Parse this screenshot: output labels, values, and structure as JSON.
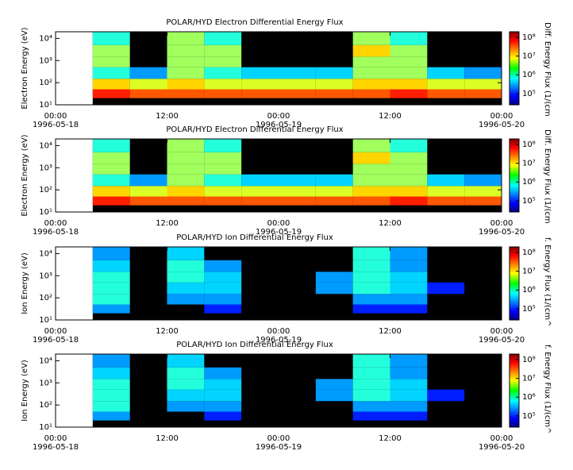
{
  "chart_data": [
    {
      "type": "heatmap",
      "title": "POLAR/HYD  Electron Differential Energy Flux",
      "ylabel": "Electron Energy (eV)",
      "zlabel": "Diff. Energy Flux (1/(cm",
      "xlim": [
        "1996-05-18 00:00",
        "1996-05-20 00:00"
      ],
      "xticks": [
        {
          "value": "1996-05-18 00:00",
          "label": "00:00",
          "date": "1996-05-18"
        },
        {
          "value": "1996-05-18 12:00",
          "label": "12:00"
        },
        {
          "value": "1996-05-19 00:00",
          "label": "00:00",
          "date": "1996-05-19"
        },
        {
          "value": "1996-05-19 12:00",
          "label": "12:00"
        },
        {
          "value": "1996-05-20 00:00",
          "label": "00:00",
          "date": "1996-05-20"
        }
      ],
      "x_edges": [
        "1996-05-18 04:00",
        "1996-05-18 08:00",
        "1996-05-18 12:00",
        "1996-05-18 16:00",
        "1996-05-18 20:00",
        "1996-05-19 00:00",
        "1996-05-19 04:00",
        "1996-05-19 08:00",
        "1996-05-19 12:00",
        "1996-05-19 16:00",
        "1996-05-19 20:00",
        "1996-05-20 00:00"
      ],
      "log_y": true,
      "ylim": [
        10,
        20000
      ],
      "yticks": [
        {
          "value": 10,
          "label": "10¹"
        },
        {
          "value": 100,
          "label": "10²"
        },
        {
          "value": 1000,
          "label": "10³"
        },
        {
          "value": 10000,
          "label": "10⁴"
        }
      ],
      "y_edges": [
        20,
        50,
        150,
        500,
        1500,
        5000,
        20000
      ],
      "z": [
        [
          50000000.0,
          30000000.0,
          30000000.0,
          30000000.0,
          30000000.0,
          30000000.0,
          30000000.0,
          30000000.0,
          50000000.0,
          30000000.0,
          30000000.0
        ],
        [
          10000000.0,
          5000000.0,
          10000000.0,
          5000000.0,
          5000000.0,
          5000000.0,
          5000000.0,
          10000000.0,
          10000000.0,
          5000000.0,
          5000000.0
        ],
        [
          1000000.0,
          300000.0,
          3000000.0,
          1000000.0,
          500000.0,
          500000.0,
          500000.0,
          3000000.0,
          3000000.0,
          500000.0,
          300000.0
        ],
        [
          3000000.0,
          null,
          3000000.0,
          3000000.0,
          null,
          null,
          null,
          3000000.0,
          3000000.0,
          null,
          null
        ],
        [
          3000000.0,
          null,
          3000000.0,
          3000000.0,
          null,
          null,
          null,
          10000000.0,
          3000000.0,
          null,
          null
        ],
        [
          1000000.0,
          null,
          3000000.0,
          1000000.0,
          null,
          null,
          null,
          3000000.0,
          1000000.0,
          null,
          null
        ]
      ],
      "colormap": "jet",
      "zlim": [
        25000,
        200000000
      ],
      "zticks": [
        {
          "value": 100000,
          "label": "10⁵"
        },
        {
          "value": 1000000,
          "label": "10⁶"
        },
        {
          "value": 10000000,
          "label": "10⁷"
        },
        {
          "value": 100000000,
          "label": "10⁸"
        }
      ]
    },
    {
      "type": "heatmap",
      "title": "POLAR/HYD  Electron Differential Energy Flux",
      "ylabel": "Electron Energy (eV)",
      "zlabel": "Diff. Energy Flux (1/(cm",
      "xlim": [
        "1996-05-18 00:00",
        "1996-05-20 00:00"
      ],
      "xticks": [
        {
          "value": "1996-05-18 00:00",
          "label": "00:00",
          "date": "1996-05-18"
        },
        {
          "value": "1996-05-18 12:00",
          "label": "12:00"
        },
        {
          "value": "1996-05-19 00:00",
          "label": "00:00",
          "date": "1996-05-19"
        },
        {
          "value": "1996-05-19 12:00",
          "label": "12:00"
        },
        {
          "value": "1996-05-20 00:00",
          "label": "00:00",
          "date": "1996-05-20"
        }
      ],
      "x_edges": [
        "1996-05-18 04:00",
        "1996-05-18 08:00",
        "1996-05-18 12:00",
        "1996-05-18 16:00",
        "1996-05-18 20:00",
        "1996-05-19 00:00",
        "1996-05-19 04:00",
        "1996-05-19 08:00",
        "1996-05-19 12:00",
        "1996-05-19 16:00",
        "1996-05-19 20:00",
        "1996-05-20 00:00"
      ],
      "log_y": true,
      "ylim": [
        10,
        20000
      ],
      "yticks": [
        {
          "value": 10,
          "label": "10¹"
        },
        {
          "value": 100,
          "label": "10²"
        },
        {
          "value": 1000,
          "label": "10³"
        },
        {
          "value": 10000,
          "label": "10⁴"
        }
      ],
      "y_edges": [
        20,
        50,
        150,
        500,
        1500,
        5000,
        20000
      ],
      "z": [
        [
          50000000.0,
          30000000.0,
          30000000.0,
          30000000.0,
          30000000.0,
          30000000.0,
          30000000.0,
          30000000.0,
          50000000.0,
          30000000.0,
          30000000.0
        ],
        [
          10000000.0,
          5000000.0,
          10000000.0,
          5000000.0,
          5000000.0,
          5000000.0,
          5000000.0,
          10000000.0,
          10000000.0,
          5000000.0,
          5000000.0
        ],
        [
          1000000.0,
          300000.0,
          3000000.0,
          1000000.0,
          500000.0,
          500000.0,
          500000.0,
          3000000.0,
          3000000.0,
          500000.0,
          300000.0
        ],
        [
          3000000.0,
          null,
          3000000.0,
          3000000.0,
          null,
          null,
          null,
          3000000.0,
          3000000.0,
          null,
          null
        ],
        [
          3000000.0,
          null,
          3000000.0,
          3000000.0,
          null,
          null,
          null,
          10000000.0,
          3000000.0,
          null,
          null
        ],
        [
          1000000.0,
          null,
          3000000.0,
          1000000.0,
          null,
          null,
          null,
          3000000.0,
          1000000.0,
          null,
          null
        ]
      ],
      "colormap": "jet",
      "zlim": [
        25000,
        200000000
      ],
      "zticks": [
        {
          "value": 100000,
          "label": "10⁵"
        },
        {
          "value": 1000000,
          "label": "10⁶"
        },
        {
          "value": 10000000,
          "label": "10⁷"
        },
        {
          "value": 100000000,
          "label": "10⁸"
        }
      ]
    },
    {
      "type": "heatmap",
      "title": "POLAR/HYD  Ion Differential Energy Flux",
      "ylabel": "Ion Energy (eV)",
      "zlabel": "f. Energy Flux (1/(cm^",
      "xlim": [
        "1996-05-18 00:00",
        "1996-05-20 00:00"
      ],
      "xticks": [
        {
          "value": "1996-05-18 00:00",
          "label": "00:00",
          "date": "1996-05-18"
        },
        {
          "value": "1996-05-18 12:00",
          "label": "12:00"
        },
        {
          "value": "1996-05-19 00:00",
          "label": "00:00",
          "date": "1996-05-19"
        },
        {
          "value": "1996-05-19 12:00",
          "label": "12:00"
        },
        {
          "value": "1996-05-20 00:00",
          "label": "00:00",
          "date": "1996-05-20"
        }
      ],
      "x_edges": [
        "1996-05-18 04:00",
        "1996-05-18 08:00",
        "1996-05-18 12:00",
        "1996-05-18 16:00",
        "1996-05-18 20:00",
        "1996-05-19 00:00",
        "1996-05-19 04:00",
        "1996-05-19 08:00",
        "1996-05-19 12:00",
        "1996-05-19 16:00",
        "1996-05-19 20:00",
        "1996-05-20 00:00"
      ],
      "log_y": true,
      "ylim": [
        10,
        20000
      ],
      "yticks": [
        {
          "value": 10,
          "label": "10¹"
        },
        {
          "value": 100,
          "label": "10²"
        },
        {
          "value": 1000,
          "label": "10³"
        },
        {
          "value": 10000,
          "label": "10⁴"
        }
      ],
      "y_edges": [
        20,
        50,
        150,
        500,
        1500,
        5000,
        20000
      ],
      "z": [
        [
          300000.0,
          null,
          null,
          100000.0,
          null,
          null,
          null,
          100000.0,
          100000.0,
          null,
          null
        ],
        [
          1000000.0,
          null,
          300000.0,
          300000.0,
          null,
          null,
          null,
          300000.0,
          300000.0,
          null,
          null
        ],
        [
          1000000.0,
          null,
          500000.0,
          500000.0,
          null,
          null,
          300000.0,
          1000000.0,
          500000.0,
          100000.0,
          null
        ],
        [
          1000000.0,
          null,
          1000000.0,
          500000.0,
          null,
          null,
          300000.0,
          1000000.0,
          500000.0,
          null,
          null
        ],
        [
          500000.0,
          null,
          1000000.0,
          300000.0,
          null,
          null,
          null,
          1000000.0,
          300000.0,
          null,
          null
        ],
        [
          300000.0,
          null,
          500000.0,
          null,
          null,
          null,
          null,
          1000000.0,
          300000.0,
          null,
          null
        ]
      ],
      "colormap": "jet",
      "zlim": [
        25000,
        200000000
      ],
      "zticks": [
        {
          "value": 100000,
          "label": "10⁵"
        },
        {
          "value": 1000000,
          "label": "10⁶"
        },
        {
          "value": 10000000,
          "label": "10⁷"
        },
        {
          "value": 100000000,
          "label": "10⁸"
        }
      ]
    },
    {
      "type": "heatmap",
      "title": "POLAR/HYD  Ion Differential Energy Flux",
      "ylabel": "Ion Energy (eV)",
      "zlabel": "f. Energy Flux (1/(cm^",
      "xlim": [
        "1996-05-18 00:00",
        "1996-05-20 00:00"
      ],
      "xticks": [
        {
          "value": "1996-05-18 00:00",
          "label": "00:00",
          "date": "1996-05-18"
        },
        {
          "value": "1996-05-18 12:00",
          "label": "12:00"
        },
        {
          "value": "1996-05-19 00:00",
          "label": "00:00",
          "date": "1996-05-19"
        },
        {
          "value": "1996-05-19 12:00",
          "label": "12:00"
        },
        {
          "value": "1996-05-20 00:00",
          "label": "00:00",
          "date": "1996-05-20"
        }
      ],
      "x_edges": [
        "1996-05-18 04:00",
        "1996-05-18 08:00",
        "1996-05-18 12:00",
        "1996-05-18 16:00",
        "1996-05-18 20:00",
        "1996-05-19 00:00",
        "1996-05-19 04:00",
        "1996-05-19 08:00",
        "1996-05-19 12:00",
        "1996-05-19 16:00",
        "1996-05-19 20:00",
        "1996-05-20 00:00"
      ],
      "log_y": true,
      "ylim": [
        10,
        20000
      ],
      "yticks": [
        {
          "value": 10,
          "label": "10¹"
        },
        {
          "value": 100,
          "label": "10²"
        },
        {
          "value": 1000,
          "label": "10³"
        },
        {
          "value": 10000,
          "label": "10⁴"
        }
      ],
      "y_edges": [
        20,
        50,
        150,
        500,
        1500,
        5000,
        20000
      ],
      "z": [
        [
          300000.0,
          null,
          null,
          100000.0,
          null,
          null,
          null,
          100000.0,
          100000.0,
          null,
          null
        ],
        [
          1000000.0,
          null,
          300000.0,
          300000.0,
          null,
          null,
          null,
          300000.0,
          300000.0,
          null,
          null
        ],
        [
          1000000.0,
          null,
          500000.0,
          500000.0,
          null,
          null,
          300000.0,
          1000000.0,
          500000.0,
          100000.0,
          null
        ],
        [
          1000000.0,
          null,
          1000000.0,
          500000.0,
          null,
          null,
          300000.0,
          1000000.0,
          500000.0,
          null,
          null
        ],
        [
          500000.0,
          null,
          1000000.0,
          300000.0,
          null,
          null,
          null,
          1000000.0,
          300000.0,
          null,
          null
        ],
        [
          300000.0,
          null,
          500000.0,
          null,
          null,
          null,
          null,
          1000000.0,
          300000.0,
          null,
          null
        ]
      ],
      "colormap": "jet",
      "zlim": [
        25000,
        200000000
      ],
      "zticks": [
        {
          "value": 100000,
          "label": "10⁵"
        },
        {
          "value": 1000000,
          "label": "10⁶"
        },
        {
          "value": 10000000,
          "label": "10⁷"
        },
        {
          "value": 100000000,
          "label": "10⁸"
        }
      ]
    }
  ]
}
